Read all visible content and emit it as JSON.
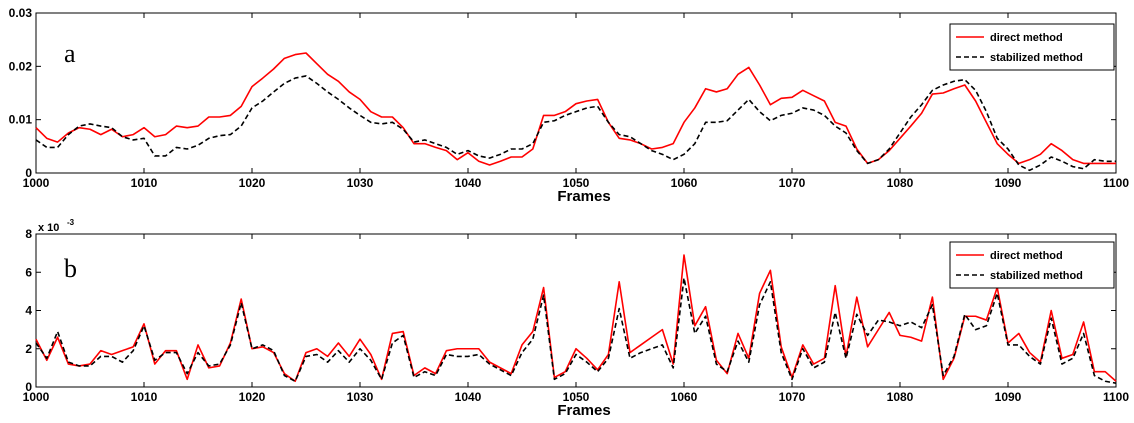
{
  "chart_data": [
    {
      "type": "line",
      "panel_label": "a",
      "xlabel": "Frames",
      "ylabel": "",
      "xlim": [
        1000,
        1100
      ],
      "ylim": [
        0,
        0.03
      ],
      "x_ticks": [
        1000,
        1010,
        1020,
        1030,
        1040,
        1050,
        1060,
        1070,
        1080,
        1090,
        1100
      ],
      "y_ticks": [
        0,
        0.01,
        0.02,
        0.03
      ],
      "y_tick_labels": [
        "0",
        "0.01",
        "0.02",
        "0.03"
      ],
      "y_exponent": "",
      "grid": false,
      "legend_position": "top-right",
      "x": [
        1000,
        1001,
        1002,
        1003,
        1004,
        1005,
        1006,
        1007,
        1008,
        1009,
        1010,
        1011,
        1012,
        1013,
        1014,
        1015,
        1016,
        1017,
        1018,
        1019,
        1020,
        1021,
        1022,
        1023,
        1024,
        1025,
        1026,
        1027,
        1028,
        1029,
        1030,
        1031,
        1032,
        1033,
        1034,
        1035,
        1036,
        1037,
        1038,
        1039,
        1040,
        1041,
        1042,
        1043,
        1044,
        1045,
        1046,
        1047,
        1048,
        1049,
        1050,
        1051,
        1052,
        1053,
        1054,
        1055,
        1056,
        1057,
        1058,
        1059,
        1060,
        1061,
        1062,
        1063,
        1064,
        1065,
        1066,
        1067,
        1068,
        1069,
        1070,
        1071,
        1072,
        1073,
        1074,
        1075,
        1076,
        1077,
        1078,
        1079,
        1080,
        1081,
        1082,
        1083,
        1084,
        1085,
        1086,
        1087,
        1088,
        1089,
        1090,
        1091,
        1092,
        1093,
        1094,
        1095,
        1096,
        1097,
        1098,
        1099,
        1100
      ],
      "series": [
        {
          "name": "direct method",
          "color": "#ff0000",
          "dash": "solid",
          "values": [
            0.0085,
            0.0065,
            0.0058,
            0.0075,
            0.0085,
            0.0082,
            0.0072,
            0.0082,
            0.0068,
            0.0072,
            0.0085,
            0.0068,
            0.0072,
            0.0088,
            0.0085,
            0.0088,
            0.0105,
            0.0105,
            0.0108,
            0.0125,
            0.0162,
            0.0178,
            0.0195,
            0.0215,
            0.0222,
            0.0225,
            0.0205,
            0.0185,
            0.0172,
            0.0152,
            0.0138,
            0.0115,
            0.0105,
            0.0105,
            0.0085,
            0.0055,
            0.0055,
            0.0048,
            0.0042,
            0.0025,
            0.0038,
            0.0022,
            0.0015,
            0.0022,
            0.003,
            0.003,
            0.0045,
            0.0108,
            0.0108,
            0.0115,
            0.013,
            0.0135,
            0.0138,
            0.0095,
            0.0065,
            0.0062,
            0.0055,
            0.0045,
            0.0048,
            0.0055,
            0.0095,
            0.0122,
            0.0158,
            0.0152,
            0.0158,
            0.0185,
            0.0198,
            0.0165,
            0.0128,
            0.014,
            0.0142,
            0.0155,
            0.0145,
            0.0135,
            0.0095,
            0.0088,
            0.0045,
            0.0018,
            0.0025,
            0.0042,
            0.0065,
            0.0088,
            0.0112,
            0.0148,
            0.015,
            0.0158,
            0.0165,
            0.0135,
            0.0095,
            0.0055,
            0.0035,
            0.0018,
            0.0025,
            0.0035,
            0.0055,
            0.0042,
            0.0025,
            0.0018,
            0.0018,
            0.0018,
            0.0018
          ]
        },
        {
          "name": "stabilized method",
          "color": "#000000",
          "dash": "dashed",
          "values": [
            0.0062,
            0.0048,
            0.0048,
            0.0072,
            0.0088,
            0.0092,
            0.0088,
            0.0085,
            0.0068,
            0.0062,
            0.0065,
            0.0032,
            0.0032,
            0.0048,
            0.0045,
            0.0052,
            0.0065,
            0.007,
            0.0072,
            0.0088,
            0.0122,
            0.0135,
            0.0152,
            0.0168,
            0.0178,
            0.0182,
            0.0168,
            0.0152,
            0.0138,
            0.0122,
            0.0108,
            0.0095,
            0.0092,
            0.0095,
            0.0082,
            0.0058,
            0.0062,
            0.0055,
            0.0048,
            0.0035,
            0.0042,
            0.0032,
            0.0028,
            0.0035,
            0.0045,
            0.0045,
            0.0055,
            0.0095,
            0.0098,
            0.0108,
            0.0115,
            0.0122,
            0.0125,
            0.0095,
            0.0072,
            0.0068,
            0.0055,
            0.0042,
            0.0035,
            0.0025,
            0.0035,
            0.0055,
            0.0095,
            0.0095,
            0.0098,
            0.0118,
            0.0138,
            0.0115,
            0.0098,
            0.0108,
            0.0112,
            0.0122,
            0.0118,
            0.0108,
            0.0088,
            0.0075,
            0.0042,
            0.0018,
            0.0025,
            0.0045,
            0.0075,
            0.0105,
            0.0128,
            0.0155,
            0.0165,
            0.0172,
            0.0175,
            0.0155,
            0.0115,
            0.0065,
            0.0045,
            0.0015,
            0.0005,
            0.0015,
            0.003,
            0.0022,
            0.0012,
            0.0008,
            0.0025,
            0.0022,
            0.0022
          ]
        }
      ]
    },
    {
      "type": "line",
      "panel_label": "b",
      "xlabel": "Frames",
      "ylabel": "",
      "xlim": [
        1000,
        1100
      ],
      "ylim": [
        0,
        0.008
      ],
      "x_ticks": [
        1000,
        1010,
        1020,
        1030,
        1040,
        1050,
        1060,
        1070,
        1080,
        1090,
        1100
      ],
      "y_ticks": [
        0,
        0.002,
        0.004,
        0.006,
        0.008
      ],
      "y_tick_labels": [
        "0",
        "2",
        "4",
        "6",
        "8"
      ],
      "y_exponent": "x 10",
      "y_exponent_power": "-3",
      "grid": false,
      "legend_position": "top-right",
      "x": [
        1000,
        1001,
        1002,
        1003,
        1004,
        1005,
        1006,
        1007,
        1008,
        1009,
        1010,
        1011,
        1012,
        1013,
        1014,
        1015,
        1016,
        1017,
        1018,
        1019,
        1020,
        1021,
        1022,
        1023,
        1024,
        1025,
        1026,
        1027,
        1028,
        1029,
        1030,
        1031,
        1032,
        1033,
        1034,
        1035,
        1036,
        1037,
        1038,
        1039,
        1040,
        1041,
        1042,
        1043,
        1044,
        1045,
        1046,
        1047,
        1048,
        1049,
        1050,
        1051,
        1052,
        1053,
        1054,
        1055,
        1056,
        1057,
        1058,
        1059,
        1060,
        1061,
        1062,
        1063,
        1064,
        1065,
        1066,
        1067,
        1068,
        1069,
        1070,
        1071,
        1072,
        1073,
        1074,
        1075,
        1076,
        1077,
        1078,
        1079,
        1080,
        1081,
        1082,
        1083,
        1084,
        1085,
        1086,
        1087,
        1088,
        1089,
        1090,
        1091,
        1092,
        1093,
        1094,
        1095,
        1096,
        1097,
        1098,
        1099,
        1100
      ],
      "series": [
        {
          "name": "direct method",
          "color": "#ff0000",
          "dash": "solid",
          "values": [
            0.0025,
            0.0014,
            0.0026,
            0.0012,
            0.0011,
            0.0012,
            0.0019,
            0.0017,
            0.0019,
            0.0021,
            0.0033,
            0.0012,
            0.0019,
            0.0019,
            0.0004,
            0.0022,
            0.001,
            0.0011,
            0.0023,
            0.0046,
            0.002,
            0.0021,
            0.0018,
            0.0007,
            0.0003,
            0.0018,
            0.002,
            0.0016,
            0.0023,
            0.0016,
            0.0025,
            0.0017,
            0.0004,
            0.0028,
            0.0029,
            0.0006,
            0.001,
            0.0007,
            0.0019,
            0.002,
            0.002,
            0.002,
            0.0013,
            0.001,
            0.0007,
            0.0022,
            0.0029,
            0.0052,
            0.0005,
            0.0008,
            0.002,
            0.0015,
            0.0009,
            0.0017,
            0.0055,
            0.0018,
            0.0022,
            0.0026,
            0.003,
            0.0012,
            0.0069,
            0.0032,
            0.0042,
            0.0014,
            0.0007,
            0.0028,
            0.0015,
            0.0049,
            0.0061,
            0.0021,
            0.0005,
            0.0022,
            0.0012,
            0.0015,
            0.0053,
            0.0016,
            0.0047,
            0.0021,
            0.003,
            0.0039,
            0.0027,
            0.0026,
            0.0024,
            0.0047,
            0.0004,
            0.0015,
            0.0037,
            0.0037,
            0.0035,
            0.0052,
            0.0023,
            0.0028,
            0.0018,
            0.0013,
            0.004,
            0.0015,
            0.0017,
            0.0034,
            0.0008,
            0.0008,
            0.0003
          ]
        },
        {
          "name": "stabilized method",
          "color": "#000000",
          "dash": "dashed",
          "values": [
            0.0023,
            0.0015,
            0.0029,
            0.0013,
            0.0011,
            0.0011,
            0.0016,
            0.0016,
            0.0013,
            0.0019,
            0.0032,
            0.0014,
            0.0018,
            0.0018,
            0.0007,
            0.0018,
            0.0011,
            0.0012,
            0.0022,
            0.0044,
            0.002,
            0.0022,
            0.0019,
            0.0006,
            0.0003,
            0.0016,
            0.0017,
            0.0013,
            0.0019,
            0.0013,
            0.002,
            0.0014,
            0.0004,
            0.0023,
            0.0027,
            0.0005,
            0.0008,
            0.0006,
            0.0017,
            0.0016,
            0.0016,
            0.0017,
            0.0012,
            0.0009,
            0.0006,
            0.0018,
            0.0025,
            0.0048,
            0.0004,
            0.0007,
            0.0017,
            0.0013,
            0.0008,
            0.0015,
            0.0041,
            0.0015,
            0.0018,
            0.002,
            0.0022,
            0.001,
            0.0057,
            0.0028,
            0.0037,
            0.0012,
            0.0008,
            0.0024,
            0.0013,
            0.0043,
            0.0055,
            0.0018,
            0.0004,
            0.002,
            0.001,
            0.0013,
            0.0039,
            0.0015,
            0.0038,
            0.0027,
            0.0035,
            0.0034,
            0.0032,
            0.0034,
            0.0031,
            0.0043,
            0.0006,
            0.0016,
            0.0038,
            0.003,
            0.0032,
            0.0049,
            0.0022,
            0.0022,
            0.0016,
            0.0012,
            0.0036,
            0.0012,
            0.0015,
            0.0028,
            0.0006,
            0.0003,
            0.0002
          ]
        }
      ]
    }
  ]
}
